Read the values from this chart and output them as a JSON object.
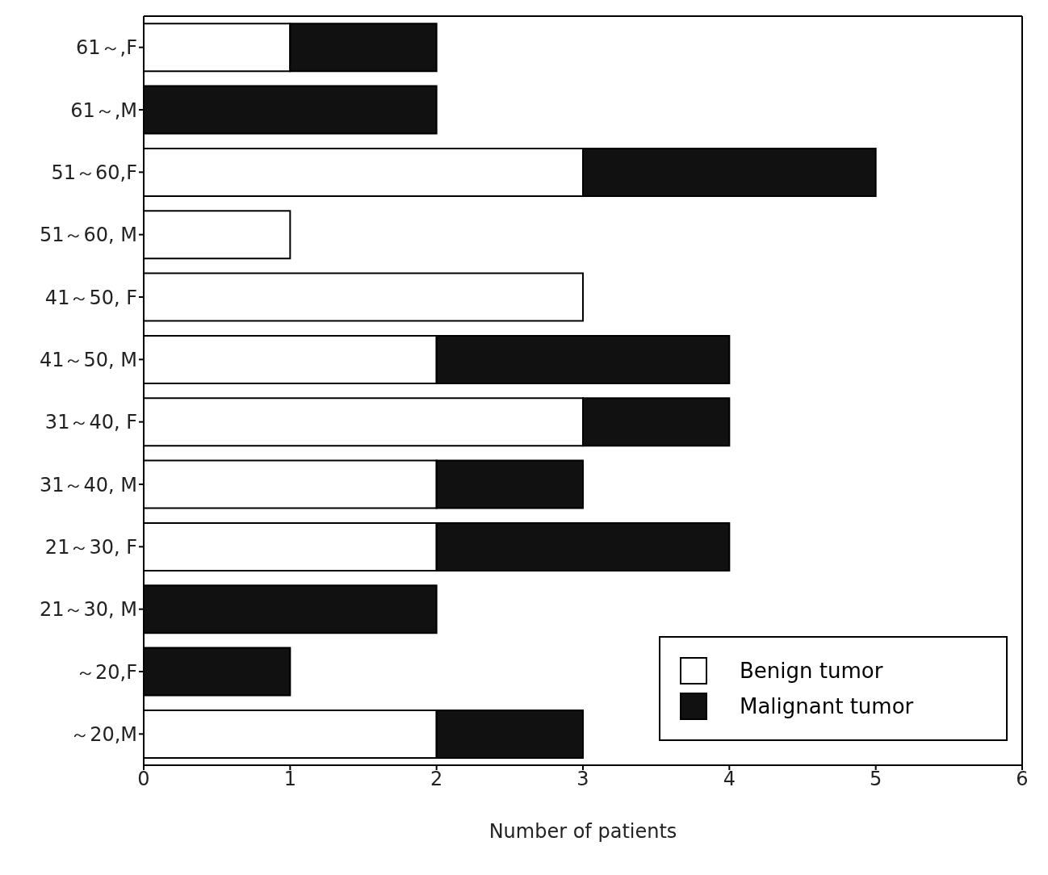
{
  "chart_data": {
    "type": "bar",
    "orientation": "horizontal",
    "stacked": true,
    "xlabel": "Number of patients",
    "categories": [
      "61～,F",
      "61～,M",
      "51～60,F",
      "51～60, M",
      "41～50, F",
      "41～50, M",
      "31～40, F",
      "31～40, M",
      "21～30, F",
      "21～30, M",
      "～20,F",
      "～20,M"
    ],
    "series": [
      {
        "name": "Benign tumor",
        "color": "#ffffff",
        "values": [
          1,
          0,
          3,
          1,
          3,
          2,
          3,
          2,
          2,
          0,
          0,
          2
        ]
      },
      {
        "name": "Malignant tumor",
        "color": "#111111",
        "values": [
          1,
          2,
          2,
          0,
          0,
          2,
          1,
          1,
          2,
          2,
          1,
          1
        ]
      }
    ],
    "xlim": [
      0,
      6
    ],
    "xticks": [
      0,
      1,
      2,
      3,
      4,
      5,
      6
    ],
    "grid": false,
    "legend": "bottom right"
  }
}
